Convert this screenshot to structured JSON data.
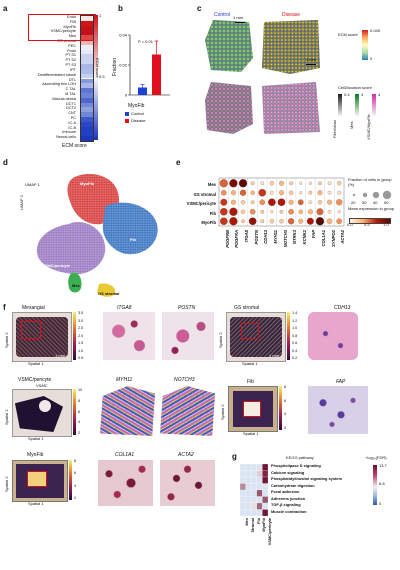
{
  "panel_labels": {
    "a": "a",
    "b": "b",
    "c": "c",
    "d": "d",
    "e": "e",
    "f": "f",
    "g": "g"
  },
  "panel_a": {
    "rows": [
      "Endo",
      "FIB",
      "MyoFib",
      "VSMC/pericyte",
      "Mes",
      "GS stromal",
      "PEC",
      "Podo",
      "PT S1",
      "PT S2",
      "PT S3",
      "iPT",
      "Dedifferentiated tubule",
      "DTL",
      "Ascending thin LOH",
      "C TAL",
      "M TAL",
      "Macula densa",
      "DCT1",
      "DCT2",
      "CNT",
      "PC",
      "IC-A",
      "IC-B",
      "Immune",
      "Neural cells"
    ],
    "colorbar_label": "ECM score",
    "ticks": [
      "1",
      "0.5"
    ],
    "xlabel": "ECM score",
    "colors": [
      "#f7e8e8",
      "#d0151b",
      "#c80f18",
      "#c4111a",
      "#e04444",
      "#f5b5b5",
      "#ebeef7",
      "#e6e9f5",
      "#c9d1ee",
      "#cdd4ef",
      "#a9b7e8",
      "#aebce9",
      "#c7cff0",
      "#8898de",
      "#aab7e8",
      "#5e77d4",
      "#6d84d8",
      "#5066cf",
      "#7489d9",
      "#8fa0e0",
      "#6f85d6",
      "#3c56cb",
      "#2b46c6",
      "#213fc2",
      "#2240c3",
      "#1a37bf"
    ]
  },
  "panel_b": {
    "pvalue": "P = 0.01",
    "ylabel": "Fraction",
    "yticks": [
      "0.04",
      "0.02",
      "0"
    ],
    "xlabel": "MyoFib",
    "legend": [
      {
        "name": "Control",
        "color": "#1f3fd6"
      },
      {
        "name": "Disease",
        "color": "#e01020"
      }
    ],
    "chart_data": {
      "type": "bar",
      "categories": [
        "MyoFib"
      ],
      "series": [
        {
          "name": "Control",
          "values": [
            0.005
          ]
        },
        {
          "name": "Disease",
          "values": [
            0.027
          ]
        }
      ],
      "ylabel": "Fraction",
      "ylim": [
        0,
        0.04
      ]
    }
  },
  "panel_c": {
    "control": "Control",
    "disease": "Disease",
    "scalebar": "1 mm",
    "ecm_label": "ECM score",
    "ecm_ticks": [
      "0.045",
      "0"
    ],
    "cell2loc_label": "Cell2location score",
    "cell2loc_items": [
      "FibroMast",
      "Mes",
      "VSMC/MyoFib"
    ],
    "cell2loc_ticks": [
      "0.4",
      "4",
      "4"
    ]
  },
  "panel_d": {
    "umap_y": "UMAP 2",
    "umap_x": "UMAP 1",
    "clusters": [
      "MyoFib",
      "Fib",
      "VSMC/pericyte",
      "Mes",
      "GS stromal"
    ]
  },
  "panel_e": {
    "rows": [
      "Mes",
      "GS stromal",
      "VSMC/pericyte",
      "Fib",
      "MyoFib"
    ],
    "genes": [
      "PDGFRB",
      "PDGFRA",
      "ITGA8",
      "POSTN",
      "CDH13",
      "MYH11",
      "NOTCH3",
      "NTRK3",
      "KCNK2",
      "FAP",
      "COL1A1",
      "SYNPO2",
      "ACTA2"
    ],
    "legend_size_title": "Fraction of cells in group (%)",
    "legend_sizes": [
      "20",
      "30",
      "40",
      "50"
    ],
    "legend_color_title": "Mean expression in group",
    "legend_color_ticks": [
      "0.0",
      "0.5",
      "1.0"
    ],
    "dots": [
      [
        [
          1,
          0.5
        ],
        [
          1,
          0.9
        ],
        [
          1,
          1.0
        ],
        [
          0.3,
          0.2
        ],
        [
          0.3,
          0.1
        ],
        [
          0.4,
          0.2
        ],
        [
          0.5,
          0.3
        ],
        [
          0.3,
          0.2
        ],
        [
          0.2,
          0.1
        ],
        [
          0.2,
          0.1
        ],
        [
          0.3,
          0.2
        ],
        [
          0.3,
          0.1
        ],
        [
          0.4,
          0.2
        ]
      ],
      [
        [
          0.6,
          0.4
        ],
        [
          0.5,
          0.3
        ],
        [
          0.7,
          0.5
        ],
        [
          0.4,
          0.3
        ],
        [
          0.9,
          0.6
        ],
        [
          0.3,
          0.1
        ],
        [
          0.5,
          0.3
        ],
        [
          0.4,
          0.2
        ],
        [
          0.2,
          0.1
        ],
        [
          0.3,
          0.2
        ],
        [
          0.5,
          0.3
        ],
        [
          0.3,
          0.1
        ],
        [
          0.3,
          0.1
        ]
      ],
      [
        [
          0.8,
          0.6
        ],
        [
          0.5,
          0.3
        ],
        [
          0.4,
          0.2
        ],
        [
          0.3,
          0.2
        ],
        [
          0.6,
          0.4
        ],
        [
          0.9,
          0.7
        ],
        [
          0.9,
          0.7
        ],
        [
          0.5,
          0.3
        ],
        [
          0.6,
          0.5
        ],
        [
          0.3,
          0.1
        ],
        [
          0.4,
          0.2
        ],
        [
          0.5,
          0.3
        ],
        [
          0.7,
          0.4
        ]
      ],
      [
        [
          0.9,
          0.6
        ],
        [
          1,
          0.7
        ],
        [
          0.4,
          0.2
        ],
        [
          0.6,
          0.4
        ],
        [
          0.3,
          0.2
        ],
        [
          0.2,
          0.1
        ],
        [
          0.3,
          0.2
        ],
        [
          0.6,
          0.4
        ],
        [
          0.4,
          0.3
        ],
        [
          0.5,
          0.3
        ],
        [
          0.8,
          0.5
        ],
        [
          0.3,
          0.1
        ],
        [
          0.2,
          0.1
        ]
      ],
      [
        [
          0.9,
          0.6
        ],
        [
          1,
          0.7
        ],
        [
          0.3,
          0.2
        ],
        [
          0.9,
          0.8
        ],
        [
          0.3,
          0.2
        ],
        [
          0.4,
          0.2
        ],
        [
          0.4,
          0.2
        ],
        [
          0.7,
          0.5
        ],
        [
          0.5,
          0.3
        ],
        [
          0.8,
          0.7
        ],
        [
          1,
          1.0
        ],
        [
          0.6,
          0.3
        ],
        [
          0.6,
          0.4
        ]
      ]
    ]
  },
  "panel_f": {
    "spatial1": "Spatial 1",
    "spatial2": "Spatial 2",
    "scalebar": "1 mm",
    "mesangial": {
      "title": "Mesangial",
      "ticks": [
        "3.5",
        "3.0",
        "2.5",
        "2.0",
        "1.5",
        "1.0",
        "0.5"
      ],
      "genes": [
        "ITGA8",
        "POSTN"
      ]
    },
    "gs": {
      "title": "GS stromal",
      "ticks": [
        "1.4",
        "1.2",
        "1.0",
        "0.8",
        "0.6",
        "0.4",
        "0.2"
      ],
      "genes": [
        "CDH13"
      ]
    },
    "vsmc": {
      "title": "VSMC/pericyte",
      "sub": "VSMC",
      "ticks": [
        "10",
        "8",
        "6",
        "4",
        "2"
      ],
      "genes": [
        "MYH11",
        "NOTCH3"
      ]
    },
    "fib": {
      "title": "Fib",
      "ticks": [
        "8",
        "6",
        "4",
        "2"
      ],
      "genes": [
        "FAP"
      ]
    },
    "myofib": {
      "title": "MyoFib",
      "ticks": [
        "8",
        "6",
        "4",
        "2"
      ],
      "genes": [
        "COL1A1",
        "ACTA2"
      ]
    }
  },
  "panel_g": {
    "title": "KEGG pathway",
    "rows": [
      "Phospholipase D signaling",
      "Calcium signaling",
      "Phosphatidylinositol signaling system",
      "Carbohydrate digestion",
      "Focal adhesion",
      "Adherens junction",
      "TGF-β signaling",
      "Muscle contraction"
    ],
    "cols": [
      "Mes",
      "Stromal",
      "Fib",
      "MyoFib",
      "VSMC/pericyte"
    ],
    "colorbar_label": "−log₁₀(FDR)",
    "colorbar_ticks": [
      "13.7",
      "6.8",
      "0"
    ],
    "values": [
      [
        0,
        0,
        0,
        0,
        13
      ],
      [
        0,
        0,
        0,
        2,
        12
      ],
      [
        0,
        0,
        0,
        0,
        13
      ],
      [
        6,
        0,
        0,
        0,
        0
      ],
      [
        0,
        0,
        0,
        9,
        0
      ],
      [
        0,
        0,
        0,
        0,
        9
      ],
      [
        0,
        0,
        1,
        8,
        0
      ],
      [
        0,
        0,
        0,
        0,
        13
      ]
    ]
  }
}
